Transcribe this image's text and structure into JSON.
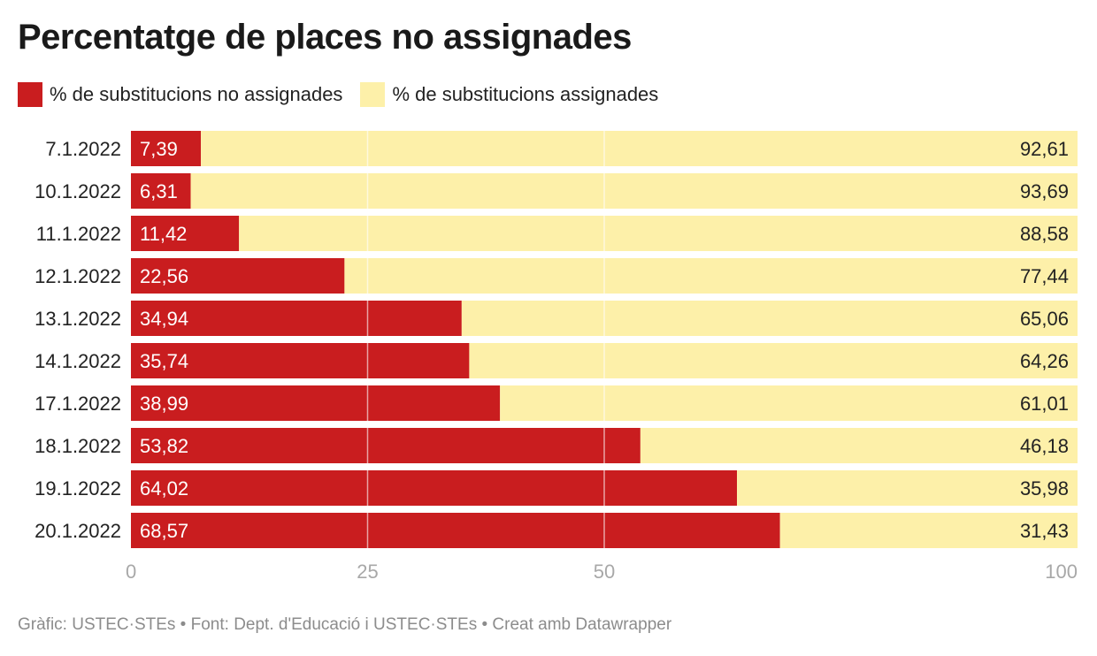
{
  "title": "Percentatge de places no assignades",
  "footer": "Gràfic: USTEC·STEs • Font: Dept. d'Educació i USTEC·STEs • Creat amb Datawrapper",
  "colors": {
    "not_assigned": "#c91d1f",
    "assigned": "#fdf0a9",
    "gridline": "#ffffff",
    "tick_label": "#a8a8a8"
  },
  "chart_data": {
    "type": "bar",
    "orientation": "horizontal",
    "stacked": true,
    "categories": [
      "7.1.2022",
      "10.1.2022",
      "11.1.2022",
      "12.1.2022",
      "13.1.2022",
      "14.1.2022",
      "17.1.2022",
      "18.1.2022",
      "19.1.2022",
      "20.1.2022"
    ],
    "series": [
      {
        "name": "% de substitucions no assignades",
        "color": "#c91d1f",
        "values": [
          7.39,
          6.31,
          11.42,
          22.56,
          34.94,
          35.74,
          38.99,
          53.82,
          64.02,
          68.57
        ],
        "labels": [
          "7,39",
          "6,31",
          "11,42",
          "22,56",
          "34,94",
          "35,74",
          "38,99",
          "53,82",
          "64,02",
          "68,57"
        ]
      },
      {
        "name": "% de substitucions assignades",
        "color": "#fdf0a9",
        "values": [
          92.61,
          93.69,
          88.58,
          77.44,
          65.06,
          64.26,
          61.01,
          46.18,
          35.98,
          31.43
        ],
        "labels": [
          "92,61",
          "93,69",
          "88,58",
          "77,44",
          "65,06",
          "64,26",
          "61,01",
          "46,18",
          "35,98",
          "31,43"
        ]
      }
    ],
    "xlim": [
      0,
      100
    ],
    "xticks": [
      0,
      25,
      50,
      100
    ],
    "gridlines_at": [
      25,
      50
    ],
    "legend_position": "top-left"
  }
}
